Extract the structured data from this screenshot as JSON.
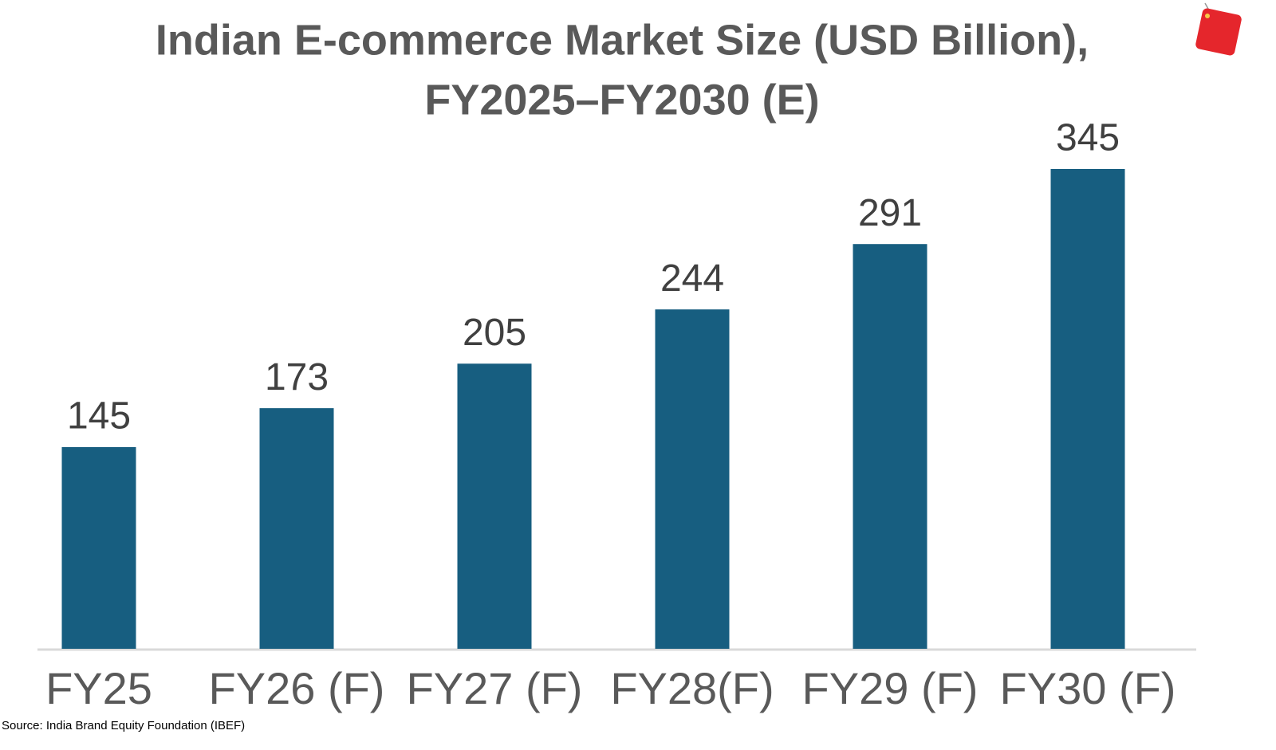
{
  "chart_data": {
    "type": "bar",
    "title": [
      "Indian E-commerce Market Size (USD Billion),",
      "FY2025–FY2030 (E)"
    ],
    "categories": [
      "FY25",
      "FY26 (F)",
      "FY27 (F)",
      "FY28(F)",
      "FY29 (F)",
      "FY30 (F)"
    ],
    "values": [
      145,
      173,
      205,
      244,
      291,
      345
    ],
    "color": "#175e80",
    "ylim": [
      0,
      400
    ],
    "source": "Source: India Brand Equity Foundation (IBEF)"
  }
}
